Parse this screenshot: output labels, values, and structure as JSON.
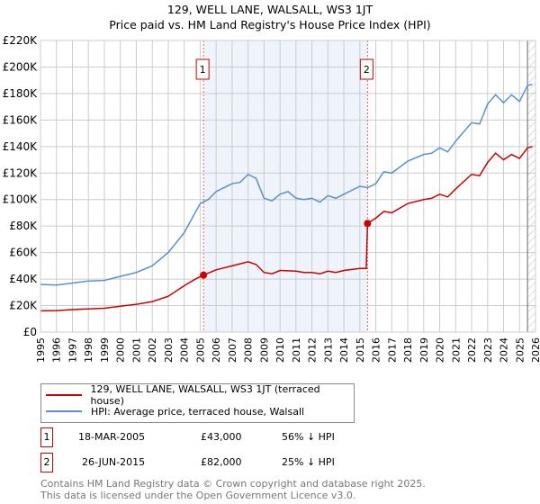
{
  "chart_data": {
    "type": "line",
    "title": "129, WELL LANE, WALSALL, WS3 1JT",
    "subtitle": "Price paid vs. HM Land Registry's House Price Index (HPI)",
    "xlim": [
      1995,
      2026
    ],
    "ylim": [
      0,
      220000
    ],
    "yticks": [
      0,
      20000,
      40000,
      60000,
      80000,
      100000,
      120000,
      140000,
      160000,
      180000,
      200000,
      220000
    ],
    "ytick_labels": [
      "£0",
      "£20K",
      "£40K",
      "£60K",
      "£80K",
      "£100K",
      "£120K",
      "£140K",
      "£160K",
      "£180K",
      "£200K",
      "£220K"
    ],
    "xticks": [
      "1995",
      "1996",
      "1997",
      "1998",
      "1999",
      "2000",
      "2001",
      "2002",
      "2003",
      "2004",
      "2005",
      "2006",
      "2007",
      "2008",
      "2009",
      "2010",
      "2011",
      "2012",
      "2013",
      "2014",
      "2015",
      "2016",
      "2017",
      "2018",
      "2019",
      "2020",
      "2021",
      "2022",
      "2023",
      "2024",
      "2025",
      "2026"
    ],
    "grid": true,
    "shaded_range": [
      2005.21,
      2015.48
    ],
    "forecast_from": 2025.5,
    "series": [
      {
        "name": "129, WELL LANE, WALSALL, WS3 1JT (terraced house)",
        "color": "#cc0000",
        "x": [
          1995,
          1996,
          1997,
          1998,
          1999,
          2000,
          2001,
          2002,
          2003,
          2004,
          2004.7,
          2005.21,
          2006,
          2007,
          2008,
          2008.5,
          2009,
          2009.5,
          2010,
          2011,
          2011.5,
          2012,
          2012.5,
          2013,
          2013.5,
          2014,
          2015,
          2015.4,
          2015.48,
          2016,
          2016.5,
          2017,
          2018,
          2019,
          2019.5,
          2020,
          2020.5,
          2021,
          2022,
          2022.5,
          2023,
          2023.5,
          2024,
          2024.5,
          2025,
          2025.5,
          2025.8
        ],
        "y": [
          16000,
          16200,
          17000,
          17500,
          18000,
          19500,
          21000,
          23000,
          27000,
          35000,
          40000,
          43000,
          47000,
          50000,
          53000,
          51000,
          45000,
          44000,
          46500,
          46000,
          45000,
          45000,
          44000,
          46000,
          45000,
          46500,
          48000,
          48000,
          82000,
          86000,
          91000,
          90000,
          97000,
          100000,
          101000,
          104000,
          102000,
          108000,
          119000,
          118000,
          128000,
          135000,
          130000,
          134000,
          131000,
          139000,
          140000
        ]
      },
      {
        "name": "HPI: Average price, terraced house, Walsall",
        "color": "#5b8fd0",
        "x": [
          1995,
          1996,
          1997,
          1998,
          1999,
          2000,
          2001,
          2002,
          2003,
          2004,
          2005,
          2005.5,
          2006,
          2007,
          2007.5,
          2008,
          2008.5,
          2009,
          2009.5,
          2010,
          2010.5,
          2011,
          2011.5,
          2012,
          2012.5,
          2013,
          2013.5,
          2014,
          2015,
          2015.5,
          2016,
          2016.5,
          2017,
          2018,
          2019,
          2019.5,
          2020,
          2020.5,
          2021,
          2022,
          2022.5,
          2023,
          2023.5,
          2024,
          2024.5,
          2025,
          2025.5,
          2025.8
        ],
        "y": [
          36000,
          35500,
          37000,
          38500,
          39000,
          42000,
          45000,
          50000,
          60000,
          75000,
          97000,
          100000,
          106000,
          112000,
          113000,
          119000,
          116000,
          101000,
          99000,
          104000,
          106000,
          101000,
          100000,
          101000,
          98000,
          103000,
          101000,
          104000,
          110000,
          109000,
          112000,
          121000,
          120000,
          129000,
          134000,
          135000,
          139000,
          136000,
          144000,
          158000,
          157000,
          172000,
          179000,
          173000,
          179000,
          174000,
          186000,
          187000
        ]
      }
    ],
    "annotations": [
      {
        "label": "1",
        "x": 2005.21,
        "y": 43000,
        "date": "18-MAR-2005",
        "price": "£43,000",
        "hpi": "56% ↓ HPI"
      },
      {
        "label": "2",
        "x": 2015.48,
        "y": 82000,
        "date": "26-JUN-2015",
        "price": "£82,000",
        "hpi": "25% ↓ HPI"
      }
    ]
  },
  "footer": {
    "line1": "Contains HM Land Registry data © Crown copyright and database right 2025.",
    "line2": "This data is licensed under the Open Government Licence v3.0."
  }
}
